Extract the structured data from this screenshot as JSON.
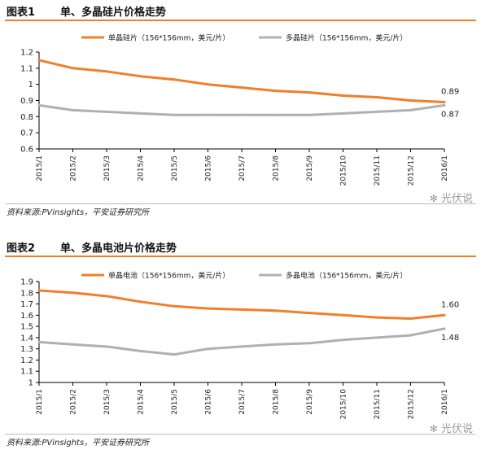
{
  "chart_data": [
    {
      "type": "line",
      "figure_label": "图表1",
      "title": "单、多晶硅片价格走势",
      "x": [
        "2015/1",
        "2015/2",
        "2015/3",
        "2015/4",
        "2015/5",
        "2015/6",
        "2015/7",
        "2015/8",
        "2015/9",
        "2015/10",
        "2015/11",
        "2015/12",
        "2016/1"
      ],
      "ylim": [
        0.6,
        1.2
      ],
      "yticks": [
        "0.6",
        "0.7",
        "0.8",
        "0.9",
        "1",
        "1.1",
        "1.2"
      ],
      "grid": false,
      "legend": "top",
      "series": [
        {
          "name": "单晶硅片（156*156mm，美元/片）",
          "color": "#f07f2a",
          "values": [
            1.15,
            1.1,
            1.08,
            1.05,
            1.03,
            1.0,
            0.98,
            0.96,
            0.95,
            0.93,
            0.92,
            0.9,
            0.89
          ]
        },
        {
          "name": "多晶硅片（156*156mm，美元/片）",
          "color": "#b0b0b0",
          "values": [
            0.87,
            0.84,
            0.83,
            0.82,
            0.81,
            0.81,
            0.81,
            0.81,
            0.81,
            0.82,
            0.83,
            0.84,
            0.87
          ]
        }
      ],
      "end_labels": [
        "0.89",
        "0.87"
      ],
      "source": "资料来源:PVinsights，平安证券研究所"
    },
    {
      "type": "line",
      "figure_label": "图表2",
      "title": "单、多晶电池片价格走势",
      "x": [
        "2015/1",
        "2015/2",
        "2015/3",
        "2015/4",
        "2015/5",
        "2015/6",
        "2015/7",
        "2015/8",
        "2015/9",
        "2015/10",
        "2015/11",
        "2015/12",
        "2016/1"
      ],
      "ylim": [
        1,
        1.9
      ],
      "yticks": [
        "1",
        "1.1",
        "1.2",
        "1.3",
        "1.4",
        "1.5",
        "1.6",
        "1.7",
        "1.8",
        "1.9"
      ],
      "grid": false,
      "legend": "top",
      "series": [
        {
          "name": "单晶电池（156*156mm，美元/片）",
          "color": "#f07f2a",
          "values": [
            1.82,
            1.8,
            1.77,
            1.72,
            1.68,
            1.66,
            1.65,
            1.64,
            1.62,
            1.6,
            1.58,
            1.57,
            1.6
          ]
        },
        {
          "name": "多晶电池（156*156mm，美元/片）",
          "color": "#b0b0b0",
          "values": [
            1.36,
            1.34,
            1.32,
            1.28,
            1.25,
            1.3,
            1.32,
            1.34,
            1.35,
            1.38,
            1.4,
            1.42,
            1.48
          ]
        }
      ],
      "end_labels": [
        "1.60",
        "1.48"
      ],
      "source": "资料来源:PVinsights，平安证券研究所"
    }
  ],
  "watermark": "光伏说",
  "watermark_icon": "wechat-icon"
}
